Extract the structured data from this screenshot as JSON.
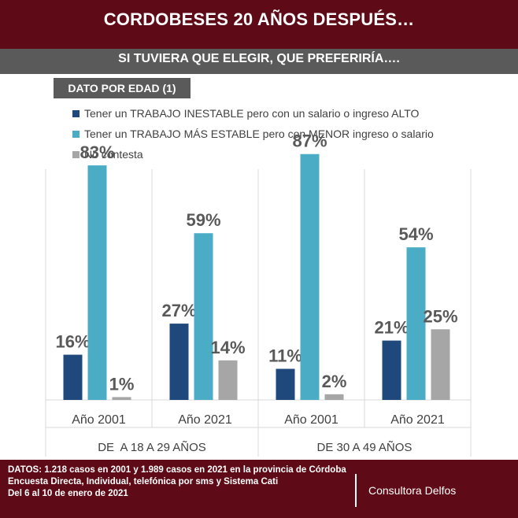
{
  "header": {
    "title": "CORDOBESES 20 AÑOS DESPUÉS…",
    "subtitle": "SI TUVIERA QUE ELEGIR, QUE PREFERIRÍA….",
    "section_label": "DATO POR EDAD (1)"
  },
  "chart_data": {
    "type": "bar",
    "value_suffix": "%",
    "groups": [
      {
        "label": "DE  A 18 A 29 AÑOS",
        "categories": [
          "Año 2001",
          "Año 2021"
        ]
      },
      {
        "label": "DE 30 A 49 AÑOS",
        "categories": [
          "Año 2001",
          "Año 2021"
        ]
      }
    ],
    "categories": [
      "Año 2001",
      "Año 2021",
      "Año 2001",
      "Año 2021"
    ],
    "series": [
      {
        "name": "Tener un TRABAJO INESTABLE pero con un salario o ingreso ALTO",
        "color": "#1f497d",
        "values": [
          16,
          27,
          11,
          21
        ]
      },
      {
        "name": "Tener un  TRABAJO MÁS ESTABLE pero con MENOR ingreso o salario",
        "color": "#4bacc6",
        "values": [
          83,
          59,
          87,
          54
        ]
      },
      {
        "name": "No contesta",
        "color": "#a6a6a6",
        "values": [
          1,
          14,
          2,
          25
        ]
      }
    ],
    "ylim": [
      0,
      100
    ],
    "grid": false,
    "legend_position": "top-left"
  },
  "footer": {
    "lines": [
      "DATOS: 1.218  casos en 2001 y 1.989  casos en 2021  en la provincia de Córdoba",
      "Encuesta Directa, Individual, telefónica por sms y Sistema Cati",
      "Del 6 al 10  de enero de 2021"
    ],
    "brand": "Consultora Delfos"
  }
}
